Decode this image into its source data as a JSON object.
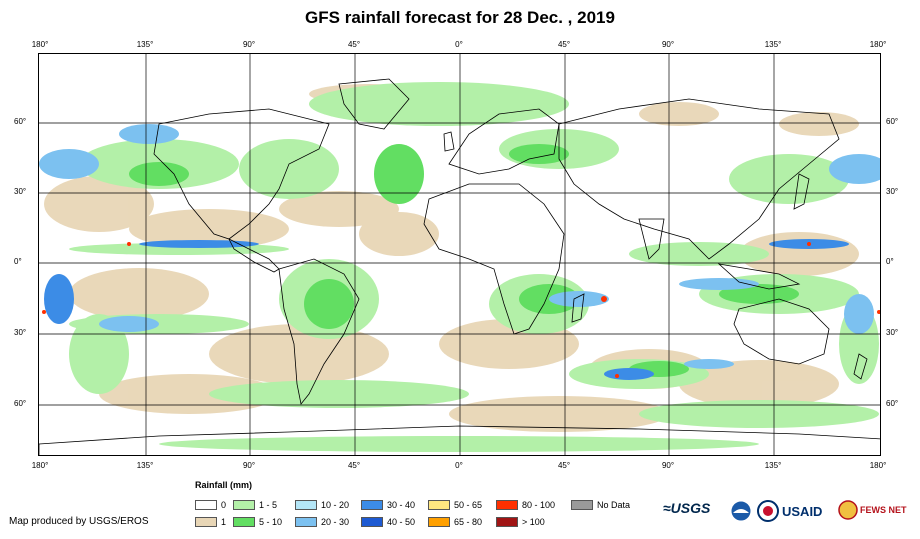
{
  "title": "GFS rainfall forecast for 28 Dec. , 2019",
  "map": {
    "lon_ticks": [
      "180°",
      "135°",
      "90°",
      "45°",
      "0°",
      "45°",
      "90°",
      "135°",
      "180°"
    ],
    "lat_ticks_left": [
      "60°",
      "30°",
      "0°",
      "30°",
      "60°"
    ],
    "lat_ticks_right": [
      "60°",
      "30°",
      "0°",
      "30°",
      "60°"
    ],
    "colors": {
      "ocean": "#ffffff",
      "grid": "#000000",
      "land_outline": "#000000"
    }
  },
  "legend": {
    "title": "Rainfall (mm)",
    "items": [
      {
        "label": "0",
        "color": "#ffffff"
      },
      {
        "label": "1",
        "color": "#e8d6b6"
      },
      {
        "label": "1 - 5",
        "color": "#b3f0a8"
      },
      {
        "label": "5 - 10",
        "color": "#62de62"
      },
      {
        "label": "10 - 20",
        "color": "#b4e6f7"
      },
      {
        "label": "20 - 30",
        "color": "#7cc1f0"
      },
      {
        "label": "30 - 40",
        "color": "#3c8ce6"
      },
      {
        "label": "40 - 50",
        "color": "#1e5ad2"
      },
      {
        "label": "50 - 65",
        "color": "#ffe680"
      },
      {
        "label": "65 - 80",
        "color": "#ffa000"
      },
      {
        "label": "80 - 100",
        "color": "#ff3000"
      },
      {
        "label": "> 100",
        "color": "#a01414"
      },
      {
        "label": "No Data",
        "color": "#9a9a9a"
      }
    ]
  },
  "credit": "Map produced by USGS/EROS",
  "logos": {
    "usgs": "≈USGS",
    "usaid": "USAID",
    "fews": "FEWS NET"
  }
}
